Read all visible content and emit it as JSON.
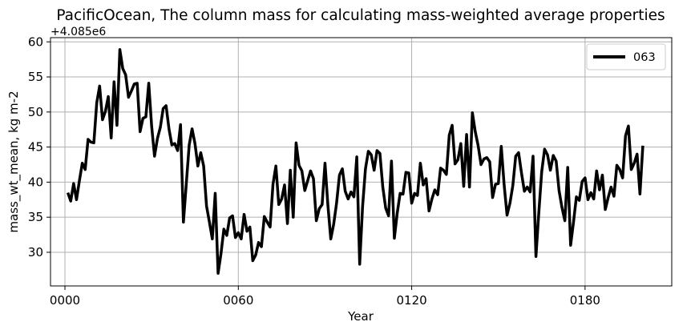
{
  "chart_data": {
    "type": "line",
    "title": "PacificOcean, The column mass for calculating mass-weighted average properties",
    "xlabel": "Year",
    "ylabel": "mass_wt_mean, kg m-2",
    "offset_text": "+4.085e6",
    "xlim": [
      -5,
      210
    ],
    "ylim": [
      25.2,
      60.6
    ],
    "x_ticks": [
      0,
      60,
      120,
      180
    ],
    "x_tick_labels": [
      "0000",
      "0060",
      "0120",
      "0180"
    ],
    "y_ticks": [
      30,
      35,
      40,
      45,
      50,
      55,
      60
    ],
    "y_tick_labels": [
      "30",
      "35",
      "40",
      "45",
      "50",
      "55",
      "60"
    ],
    "grid": true,
    "legend_position": "top-right",
    "series": [
      {
        "name": "063",
        "color": "#000000",
        "x": [
          1,
          2,
          3,
          4,
          5,
          6,
          7,
          8,
          9,
          10,
          11,
          12,
          13,
          14,
          15,
          16,
          17,
          18,
          19,
          20,
          21,
          22,
          23,
          24,
          25,
          26,
          27,
          28,
          29,
          30,
          31,
          32,
          33,
          34,
          35,
          36,
          37,
          38,
          39,
          40,
          41,
          42,
          43,
          44,
          45,
          46,
          47,
          48,
          49,
          50,
          51,
          52,
          53,
          54,
          55,
          56,
          57,
          58,
          59,
          60,
          61,
          62,
          63,
          64,
          65,
          66,
          67,
          68,
          69,
          70,
          71,
          72,
          73,
          74,
          75,
          76,
          77,
          78,
          79,
          80,
          81,
          82,
          83,
          84,
          85,
          86,
          87,
          88,
          89,
          90,
          91,
          92,
          93,
          94,
          95,
          96,
          97,
          98,
          99,
          100,
          101,
          102,
          103,
          104,
          105,
          106,
          107,
          108,
          109,
          110,
          111,
          112,
          113,
          114,
          115,
          116,
          117,
          118,
          119,
          120,
          121,
          122,
          123,
          124,
          125,
          126,
          127,
          128,
          129,
          130,
          131,
          132,
          133,
          134,
          135,
          136,
          137,
          138,
          139,
          140,
          141,
          142,
          143,
          144,
          145,
          146,
          147,
          148,
          149,
          150,
          151,
          152,
          153,
          154,
          155,
          156,
          157,
          158,
          159,
          160,
          161,
          162,
          163,
          164,
          165,
          166,
          167,
          168,
          169,
          170,
          171,
          172,
          173,
          174,
          175,
          176,
          177,
          178,
          179,
          180,
          181,
          182,
          183,
          184,
          185,
          186,
          187,
          188,
          189,
          190,
          191,
          192,
          193,
          194,
          195,
          196,
          197,
          198,
          199,
          200
        ],
        "y": [
          38.5,
          37.3,
          39.8,
          37.5,
          40.2,
          42.7,
          41.8,
          46.1,
          45.7,
          45.6,
          51.3,
          53.7,
          48.9,
          50.1,
          52.2,
          46.3,
          54.3,
          48.1,
          58.9,
          56.2,
          55.3,
          52.1,
          53.0,
          54.0,
          54.1,
          47.2,
          49.1,
          49.3,
          54.1,
          48.0,
          43.7,
          46.2,
          47.8,
          50.5,
          50.9,
          47.6,
          45.3,
          45.5,
          44.5,
          48.2,
          34.3,
          39.8,
          45.3,
          47.6,
          45.5,
          42.3,
          44.2,
          42.3,
          36.6,
          34.3,
          31.9,
          38.4,
          27.0,
          29.8,
          33.3,
          32.4,
          34.9,
          35.2,
          32.1,
          32.8,
          31.9,
          35.4,
          33.0,
          33.6,
          28.8,
          29.6,
          31.4,
          30.8,
          35.1,
          34.3,
          33.6,
          39.7,
          42.3,
          36.8,
          37.6,
          39.6,
          34.1,
          41.7,
          35.0,
          45.6,
          42.4,
          41.6,
          38.8,
          40.2,
          41.6,
          40.5,
          34.5,
          36.2,
          36.8,
          42.7,
          36.7,
          31.9,
          34.0,
          37.0,
          41.0,
          41.9,
          38.7,
          37.6,
          38.6,
          37.9,
          43.6,
          28.3,
          36.5,
          41.9,
          44.4,
          43.9,
          41.7,
          44.5,
          44.1,
          39.3,
          36.3,
          35.2,
          43.0,
          32.0,
          35.6,
          38.4,
          38.3,
          41.4,
          41.3,
          37.0,
          38.4,
          38.1,
          42.7,
          39.6,
          40.5,
          35.9,
          37.6,
          38.9,
          38.2,
          42.0,
          41.7,
          41.1,
          46.7,
          48.1,
          42.6,
          43.2,
          45.5,
          39.4,
          46.8,
          39.3,
          49.9,
          47.2,
          45.2,
          42.5,
          43.3,
          43.5,
          42.9,
          37.8,
          39.7,
          39.8,
          45.1,
          39.6,
          35.3,
          37.0,
          39.5,
          43.7,
          44.2,
          41.3,
          38.7,
          39.3,
          38.6,
          43.7,
          29.4,
          35.7,
          41.5,
          44.7,
          43.9,
          41.7,
          43.8,
          43.0,
          38.8,
          36.4,
          34.5,
          42.1,
          31.0,
          34.3,
          37.9,
          37.4,
          40.1,
          40.6,
          37.5,
          38.5,
          37.6,
          41.6,
          38.9,
          41.0,
          36.1,
          37.8,
          39.3,
          38.0,
          42.4,
          41.8,
          40.6,
          46.6,
          48.0,
          41.8,
          42.7,
          44.0,
          38.3,
          45.2
        ]
      }
    ]
  }
}
